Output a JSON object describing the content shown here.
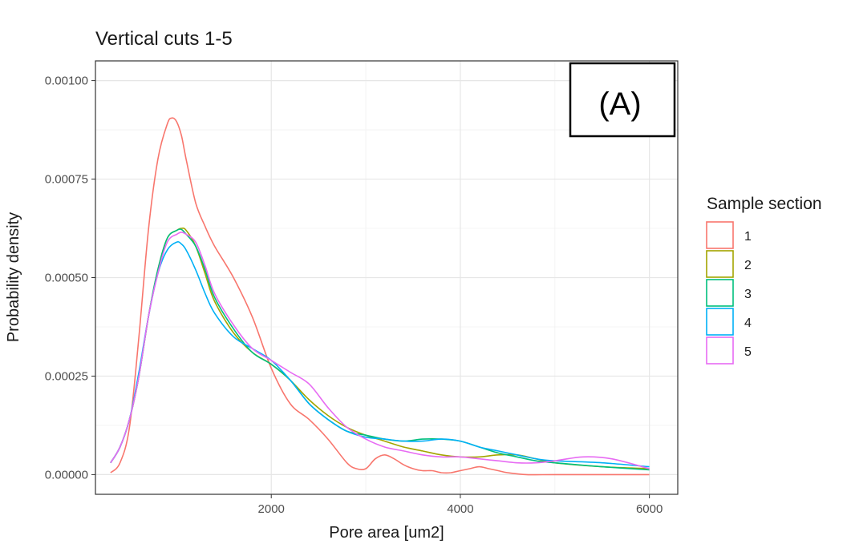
{
  "chart_data": {
    "type": "line",
    "title": "Vertical cuts 1-5",
    "xlabel": "Pore area [um2]",
    "ylabel": "Probability density",
    "xlim": [
      140,
      6300
    ],
    "ylim": [
      -5e-05,
      0.00105
    ],
    "xticks": [
      2000,
      4000,
      6000
    ],
    "xtick_labels": [
      "2000",
      "4000",
      "6000"
    ],
    "yticks": [
      0,
      0.00025,
      0.0005,
      0.00075,
      0.001
    ],
    "ytick_labels": [
      "0.00000",
      "0.00025",
      "0.00050",
      "0.00075",
      "0.00100"
    ],
    "grid": true,
    "legend": {
      "title": "Sample section",
      "position": "right"
    },
    "panel_label": "(A)",
    "series": [
      {
        "name": "1",
        "color": "#F8766D",
        "x": [
          300,
          400,
          500,
          600,
          700,
          800,
          900,
          950,
          1000,
          1050,
          1100,
          1200,
          1300,
          1400,
          1600,
          1800,
          2000,
          2200,
          2400,
          2600,
          2800,
          2900,
          3000,
          3100,
          3200,
          3300,
          3400,
          3500,
          3600,
          3700,
          3800,
          3900,
          4000,
          4100,
          4200,
          4300,
          4400,
          4500,
          4700,
          5000,
          5500,
          6000
        ],
        "y": [
          5e-06,
          3e-05,
          0.00012,
          0.00035,
          0.00062,
          0.0008,
          0.00089,
          0.000905,
          0.000895,
          0.00086,
          0.0008,
          0.00069,
          0.00063,
          0.00058,
          0.0005,
          0.0004,
          0.00027,
          0.00018,
          0.00014,
          9e-05,
          3e-05,
          1.5e-05,
          1.5e-05,
          4e-05,
          5e-05,
          4e-05,
          2.5e-05,
          1.5e-05,
          1e-05,
          1e-05,
          5e-06,
          5e-06,
          1e-05,
          1.5e-05,
          2e-05,
          1.5e-05,
          1e-05,
          5e-06,
          0.0,
          0.0,
          0.0,
          0.0
        ]
      },
      {
        "name": "2",
        "color": "#A3A500",
        "x": [
          300,
          400,
          500,
          600,
          700,
          800,
          900,
          1000,
          1050,
          1100,
          1200,
          1300,
          1400,
          1600,
          1800,
          2000,
          2200,
          2400,
          2600,
          2800,
          3000,
          3200,
          3400,
          3600,
          3800,
          4000,
          4200,
          4400,
          4600,
          4800,
          5000,
          5500,
          6000
        ],
        "y": [
          3e-05,
          7e-05,
          0.00014,
          0.00025,
          0.0004,
          0.00052,
          0.0006,
          0.00062,
          0.000625,
          0.00062,
          0.00058,
          0.00051,
          0.00044,
          0.00036,
          0.00031,
          0.00028,
          0.00024,
          0.00019,
          0.00015,
          0.00012,
          0.0001,
          8.5e-05,
          7e-05,
          6e-05,
          5e-05,
          4.5e-05,
          4.5e-05,
          5e-05,
          5e-05,
          4e-05,
          3e-05,
          2e-05,
          1.5e-05
        ]
      },
      {
        "name": "3",
        "color": "#00BF7D",
        "x": [
          300,
          400,
          500,
          600,
          700,
          800,
          900,
          1000,
          1050,
          1100,
          1200,
          1300,
          1400,
          1600,
          1800,
          2000,
          2200,
          2400,
          2600,
          2800,
          3000,
          3200,
          3400,
          3600,
          3800,
          4000,
          4200,
          4400,
          4600,
          4800,
          5000,
          5500,
          6000
        ],
        "y": [
          3e-05,
          7e-05,
          0.00014,
          0.00025,
          0.0004,
          0.00052,
          0.0006,
          0.00062,
          0.000622,
          0.00061,
          0.00058,
          0.00052,
          0.00045,
          0.00037,
          0.00031,
          0.00028,
          0.00024,
          0.00018,
          0.00014,
          0.00011,
          0.0001,
          9e-05,
          8.5e-05,
          9e-05,
          9e-05,
          8.5e-05,
          7e-05,
          5.5e-05,
          4.5e-05,
          3.5e-05,
          3e-05,
          2e-05,
          1.2e-05
        ]
      },
      {
        "name": "4",
        "color": "#00B0F6",
        "x": [
          300,
          400,
          500,
          600,
          700,
          800,
          900,
          1000,
          1050,
          1100,
          1200,
          1300,
          1400,
          1600,
          1800,
          2000,
          2200,
          2400,
          2600,
          2800,
          3000,
          3200,
          3400,
          3600,
          3800,
          4000,
          4200,
          4400,
          4600,
          4800,
          5000,
          5500,
          6000
        ],
        "y": [
          3e-05,
          7e-05,
          0.00014,
          0.00026,
          0.0004,
          0.00051,
          0.00057,
          0.00059,
          0.000585,
          0.00057,
          0.00052,
          0.00046,
          0.00041,
          0.00035,
          0.00032,
          0.00029,
          0.00024,
          0.00018,
          0.00014,
          0.00011,
          9.5e-05,
          9e-05,
          8.5e-05,
          8.5e-05,
          9e-05,
          8.5e-05,
          7e-05,
          6e-05,
          5e-05,
          4e-05,
          3.5e-05,
          3e-05,
          2e-05
        ]
      },
      {
        "name": "5",
        "color": "#E76BF3",
        "x": [
          300,
          400,
          500,
          600,
          700,
          800,
          900,
          1000,
          1050,
          1100,
          1200,
          1300,
          1400,
          1600,
          1800,
          2000,
          2200,
          2400,
          2600,
          2800,
          3000,
          3200,
          3400,
          3600,
          3800,
          4000,
          4200,
          4400,
          4600,
          4800,
          5000,
          5300,
          5600,
          6000
        ],
        "y": [
          3e-05,
          7e-05,
          0.00014,
          0.00025,
          0.0004,
          0.00051,
          0.00059,
          0.00061,
          0.000615,
          0.00061,
          0.00059,
          0.00053,
          0.00046,
          0.00038,
          0.00032,
          0.00029,
          0.00026,
          0.00023,
          0.00017,
          0.00012,
          9e-05,
          7e-05,
          6e-05,
          5e-05,
          4.5e-05,
          4.5e-05,
          4e-05,
          3.5e-05,
          3e-05,
          3e-05,
          3.5e-05,
          4.5e-05,
          4e-05,
          1.5e-05
        ]
      }
    ]
  }
}
